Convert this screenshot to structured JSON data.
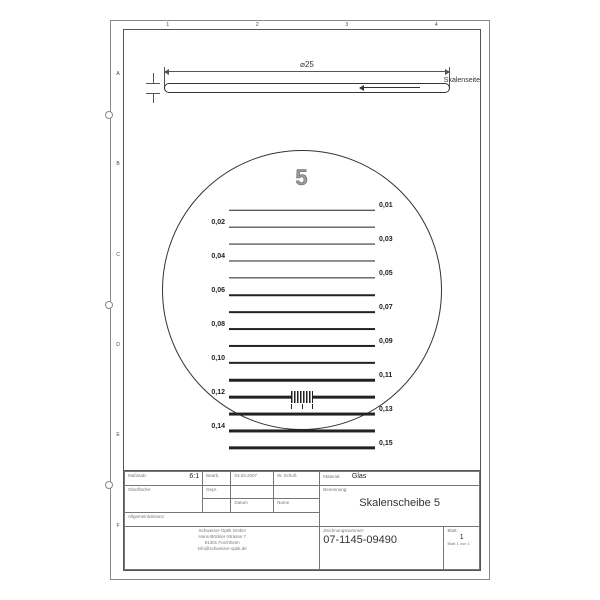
{
  "frame": {
    "columns": [
      "1",
      "2",
      "3",
      "4"
    ],
    "rows": [
      "A",
      "B",
      "C",
      "D",
      "E",
      "F"
    ]
  },
  "dimension": {
    "diameter": "⌀25",
    "leader": "Skalenseite"
  },
  "reticle": {
    "number": "5",
    "lines": [
      {
        "thickness": 0.5,
        "left": "",
        "right": "0,01"
      },
      {
        "thickness": 0.7,
        "left": "0,02",
        "right": ""
      },
      {
        "thickness": 0.9,
        "left": "",
        "right": "0,03"
      },
      {
        "thickness": 1.1,
        "left": "0,04",
        "right": ""
      },
      {
        "thickness": 1.3,
        "left": "",
        "right": "0,05"
      },
      {
        "thickness": 1.5,
        "left": "0,06",
        "right": ""
      },
      {
        "thickness": 1.7,
        "left": "",
        "right": "0,07"
      },
      {
        "thickness": 1.9,
        "left": "0,08",
        "right": ""
      },
      {
        "thickness": 2.1,
        "left": "",
        "right": "0,09"
      },
      {
        "thickness": 2.3,
        "left": "0,10",
        "right": ""
      },
      {
        "thickness": 2.5,
        "left": "",
        "right": "0,11"
      },
      {
        "thickness": 2.7,
        "left": "0,12",
        "right": ""
      },
      {
        "thickness": 2.9,
        "left": "",
        "right": "0,13"
      },
      {
        "thickness": 3.1,
        "left": "0,14",
        "right": ""
      },
      {
        "thickness": 3.3,
        "left": "",
        "right": "0,15"
      }
    ]
  },
  "title_block": {
    "massstab_label": "Maßstab:",
    "massstab": "6:1",
    "oberflaeche_label": "Oberfläche:",
    "bearb_label": "Bearb.",
    "bearb_date": "03.03.2007",
    "bearb_name": "W. Schuß",
    "gepr_label": "Gepr.",
    "datum_label": "Datum",
    "name_label": "Name",
    "material_label": "Material:",
    "material": "Glas",
    "benennung_label": "Benennung:",
    "benennung": "Skalenscheibe 5",
    "allgemeintoleranz_label": "Allgemeintoleranz:",
    "zeichnungsnr_label": "Zeichnungsnummer:",
    "zeichnungsnr": "07-1145-09490",
    "blatt_label": "Blatt:",
    "blatt": "1",
    "company1": "Schweizer-Optik GmbH",
    "company2": "Hans-Böckler-Strasse 7",
    "company3": "91301 Forchheim",
    "company4": "info@schweizer-optik.de",
    "von": "Blatt 1 von 1"
  }
}
